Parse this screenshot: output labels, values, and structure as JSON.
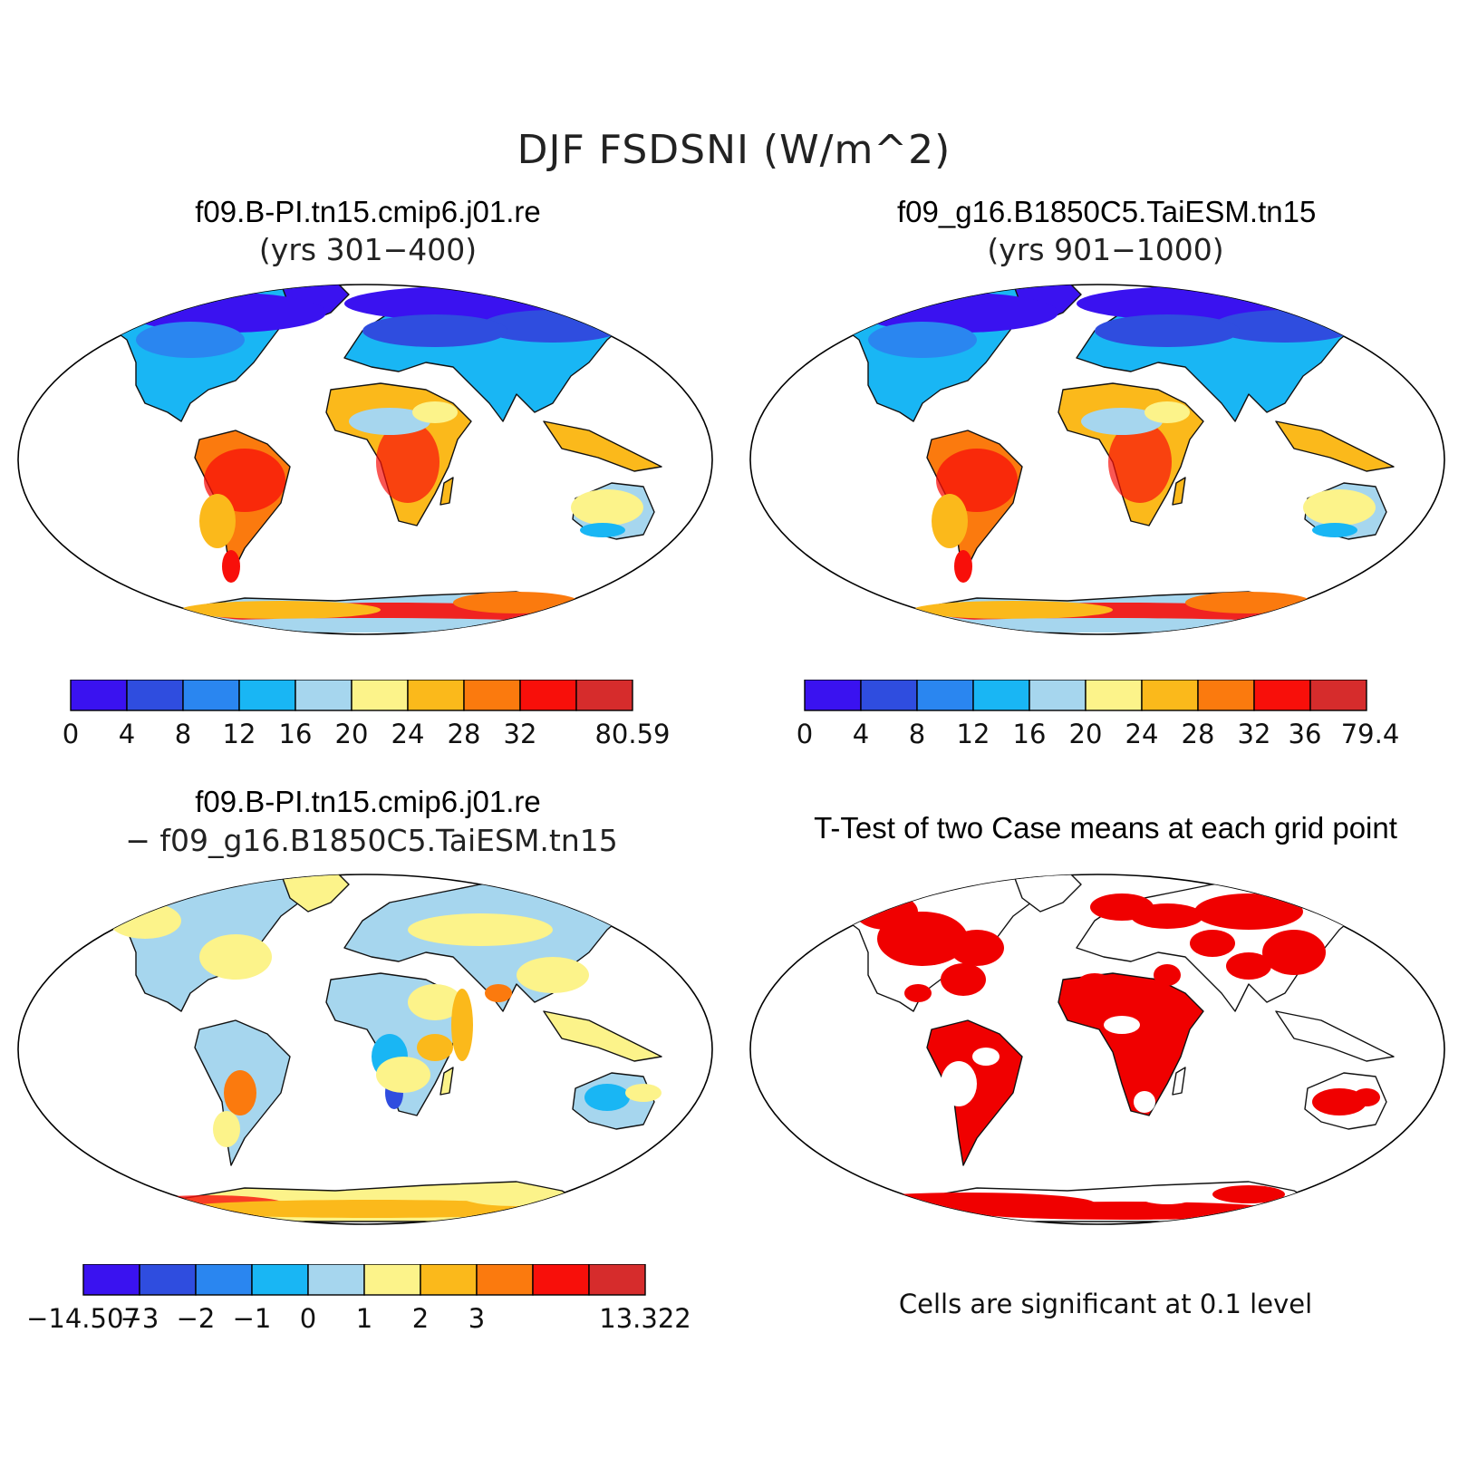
{
  "title": "DJF FSDSNI (W/m^2)",
  "panels": [
    {
      "id": "case1",
      "title": "f09.B-PI.tn15.cmip6.j01.re",
      "subtitle": "(yrs 301−400)",
      "colorbar": {
        "colors": [
          "#3a12f0",
          "#2f4ddf",
          "#2a86f0",
          "#19b6f4",
          "#a6d6ee",
          "#fcf38a",
          "#fbb91b",
          "#fb7a0e",
          "#f80f0a",
          "#d62c2c"
        ],
        "tick_labels": [
          "0",
          "4",
          "8",
          "12",
          "16",
          "20",
          "24",
          "28",
          "32",
          "80.59"
        ]
      }
    },
    {
      "id": "case2",
      "title": "f09_g16.B1850C5.TaiESM.tn15",
      "subtitle": "(yrs 901−1000)",
      "colorbar": {
        "colors": [
          "#3a12f0",
          "#2f4ddf",
          "#2a86f0",
          "#19b6f4",
          "#a6d6ee",
          "#fcf38a",
          "#fbb91b",
          "#fb7a0e",
          "#f80f0a",
          "#d62c2c"
        ],
        "tick_labels": [
          "0",
          "4",
          "8",
          "12",
          "16",
          "20",
          "24",
          "28",
          "32",
          "36",
          "79.4"
        ]
      }
    },
    {
      "id": "diff",
      "title": "f09.B-PI.tn15.cmip6.j01.re",
      "subtitle": "− f09_g16.B1850C5.TaiESM.tn15",
      "colorbar": {
        "colors": [
          "#3a12f0",
          "#2f4ddf",
          "#2a86f0",
          "#19b6f4",
          "#a6d6ee",
          "#fcf38a",
          "#fbb91b",
          "#fb7a0e",
          "#f80f0a",
          "#d62c2c"
        ],
        "tick_labels": [
          "−14.507",
          "−3",
          "−2",
          "−1",
          "0",
          "1",
          "2",
          "3",
          "13.322"
        ]
      }
    },
    {
      "id": "ttest",
      "title": "T-Test of two Case means at each grid point",
      "note": "Cells are significant at 0.1 level",
      "significant_color": "#f00000"
    }
  ]
}
